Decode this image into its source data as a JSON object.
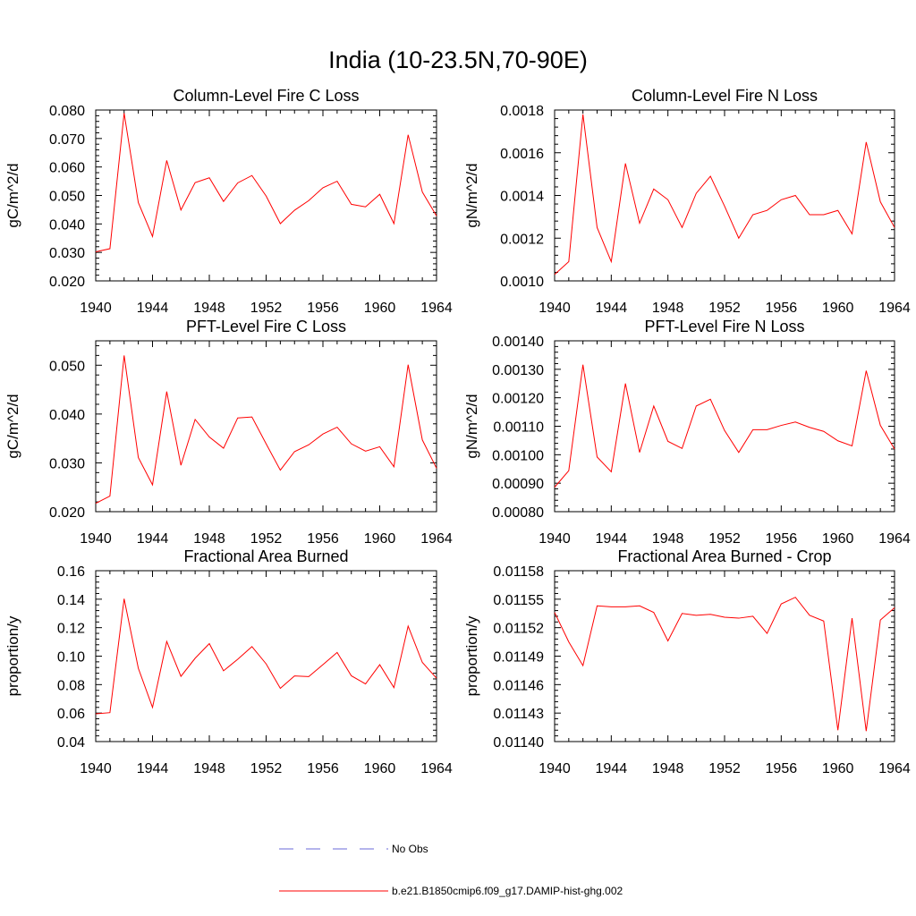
{
  "figure_title": "India (10-23.5N,70-90E)",
  "x_ticks": [
    "1940",
    "1944",
    "1948",
    "1952",
    "1956",
    "1960",
    "1964"
  ],
  "chart_data": [
    {
      "type": "line",
      "title": "Column-Level Fire C Loss",
      "xlabel": "",
      "ylabel": "gC/m^2/d",
      "xlim": [
        1940,
        1964
      ],
      "ylim": [
        0.02,
        0.08
      ],
      "y_ticks": [
        "0.020",
        "0.030",
        "0.040",
        "0.050",
        "0.060",
        "0.070",
        "0.080"
      ],
      "x": [
        1940,
        1941,
        1942,
        1943,
        1944,
        1945,
        1946,
        1947,
        1948,
        1949,
        1950,
        1951,
        1952,
        1953,
        1954,
        1955,
        1956,
        1957,
        1958,
        1959,
        1960,
        1961,
        1962,
        1963,
        1964
      ],
      "series": [
        {
          "name": "b.e21.B1850cmip6.f09_g17.DAMIP-hist-ghg.002",
          "color": "#ff0000",
          "values": [
            0.0302,
            0.0313,
            0.0789,
            0.0475,
            0.0356,
            0.0623,
            0.0449,
            0.0545,
            0.0562,
            0.0479,
            0.0544,
            0.057,
            0.0498,
            0.0401,
            0.0448,
            0.0482,
            0.0527,
            0.055,
            0.0469,
            0.046,
            0.0504,
            0.0401,
            0.0713,
            0.0512,
            0.0428
          ]
        }
      ]
    },
    {
      "type": "line",
      "title": "Column-Level Fire N Loss",
      "xlabel": "",
      "ylabel": "gN/m^2/d",
      "xlim": [
        1940,
        1964
      ],
      "ylim": [
        0.001,
        0.0018
      ],
      "y_ticks": [
        "0.0010",
        "0.0012",
        "0.0014",
        "0.0016",
        "0.0018"
      ],
      "x": [
        1940,
        1941,
        1942,
        1943,
        1944,
        1945,
        1946,
        1947,
        1948,
        1949,
        1950,
        1951,
        1952,
        1953,
        1954,
        1955,
        1956,
        1957,
        1958,
        1959,
        1960,
        1961,
        1962,
        1963,
        1964
      ],
      "series": [
        {
          "name": "b.e21.B1850cmip6.f09_g17.DAMIP-hist-ghg.002",
          "color": "#ff0000",
          "values": [
            0.00103,
            0.00109,
            0.00178,
            0.00125,
            0.00109,
            0.00155,
            0.00127,
            0.00143,
            0.00138,
            0.00125,
            0.00141,
            0.00149,
            0.00135,
            0.0012,
            0.00131,
            0.00133,
            0.00138,
            0.0014,
            0.00131,
            0.00131,
            0.00133,
            0.00122,
            0.00165,
            0.00137,
            0.00125
          ]
        }
      ]
    },
    {
      "type": "line",
      "title": "PFT-Level Fire C Loss",
      "xlabel": "",
      "ylabel": "gC/m^2/d",
      "xlim": [
        1940,
        1964
      ],
      "ylim": [
        0.02,
        0.055
      ],
      "y_ticks": [
        "0.020",
        "0.030",
        "0.040",
        "0.050"
      ],
      "y_tick_values": [
        0.02,
        0.03,
        0.04,
        0.05
      ],
      "x": [
        1940,
        1941,
        1942,
        1943,
        1944,
        1945,
        1946,
        1947,
        1948,
        1949,
        1950,
        1951,
        1952,
        1953,
        1954,
        1955,
        1956,
        1957,
        1958,
        1959,
        1960,
        1961,
        1962,
        1963,
        1964
      ],
      "series": [
        {
          "name": "b.e21.B1850cmip6.f09_g17.DAMIP-hist-ghg.002",
          "color": "#ff0000",
          "values": [
            0.0217,
            0.0232,
            0.052,
            0.0311,
            0.0255,
            0.0446,
            0.0295,
            0.0389,
            0.0353,
            0.033,
            0.0392,
            0.0394,
            0.0339,
            0.0285,
            0.0323,
            0.0337,
            0.0359,
            0.0373,
            0.0339,
            0.0324,
            0.0333,
            0.0292,
            0.0501,
            0.0347,
            0.0289
          ]
        }
      ]
    },
    {
      "type": "line",
      "title": "PFT-Level Fire N Loss",
      "xlabel": "",
      "ylabel": "gN/m^2/d",
      "xlim": [
        1940,
        1964
      ],
      "ylim": [
        0.0008,
        0.0014
      ],
      "y_ticks": [
        "0.00080",
        "0.00090",
        "0.00100",
        "0.00110",
        "0.00120",
        "0.00130",
        "0.00140"
      ],
      "x": [
        1940,
        1941,
        1942,
        1943,
        1944,
        1945,
        1946,
        1947,
        1948,
        1949,
        1950,
        1951,
        1952,
        1953,
        1954,
        1955,
        1956,
        1957,
        1958,
        1959,
        1960,
        1961,
        1962,
        1963,
        1964
      ],
      "series": [
        {
          "name": "b.e21.B1850cmip6.f09_g17.DAMIP-hist-ghg.002",
          "color": "#ff0000",
          "values": [
            0.000886,
            0.000944,
            0.001316,
            0.000992,
            0.00094,
            0.00125,
            0.001008,
            0.001171,
            0.001047,
            0.001022,
            0.001171,
            0.001195,
            0.001085,
            0.001008,
            0.001088,
            0.001088,
            0.001103,
            0.001115,
            0.001096,
            0.001082,
            0.001049,
            0.001031,
            0.001295,
            0.001103,
            0.00102
          ]
        }
      ]
    },
    {
      "type": "line",
      "title": "Fractional Area Burned",
      "xlabel": "",
      "ylabel": "proportion/y",
      "xlim": [
        1940,
        1964
      ],
      "ylim": [
        0.04,
        0.16
      ],
      "y_ticks": [
        "0.04",
        "0.06",
        "0.08",
        "0.10",
        "0.12",
        "0.14",
        "0.16"
      ],
      "x": [
        1940,
        1941,
        1942,
        1943,
        1944,
        1945,
        1946,
        1947,
        1948,
        1949,
        1950,
        1951,
        1952,
        1953,
        1954,
        1955,
        1956,
        1957,
        1958,
        1959,
        1960,
        1961,
        1962,
        1963,
        1964
      ],
      "series": [
        {
          "name": "b.e21.B1850cmip6.f09_g17.DAMIP-hist-ghg.002",
          "color": "#ff0000",
          "values": [
            0.0595,
            0.0603,
            0.1403,
            0.0915,
            0.064,
            0.1103,
            0.0858,
            0.0985,
            0.1088,
            0.0897,
            0.0978,
            0.1067,
            0.0946,
            0.0774,
            0.0861,
            0.0856,
            0.094,
            0.1026,
            0.0862,
            0.0805,
            0.094,
            0.0779,
            0.1211,
            0.0956,
            0.0845
          ]
        }
      ]
    },
    {
      "type": "line",
      "title": "Fractional Area Burned - Crop",
      "xlabel": "",
      "ylabel": "proportion/y",
      "xlim": [
        1940,
        1964
      ],
      "ylim": [
        0.0114,
        0.01158
      ],
      "y_ticks": [
        "0.01140",
        "0.01143",
        "0.01146",
        "0.01149",
        "0.01152",
        "0.01155",
        "0.01158"
      ],
      "x": [
        1940,
        1941,
        1942,
        1943,
        1944,
        1945,
        1946,
        1947,
        1948,
        1949,
        1950,
        1951,
        1952,
        1953,
        1954,
        1955,
        1956,
        1957,
        1958,
        1959,
        1960,
        1961,
        1962,
        1963,
        1964
      ],
      "series": [
        {
          "name": "b.e21.B1850cmip6.f09_g17.DAMIP-hist-ghg.002",
          "color": "#ff0000",
          "values": [
            0.011536,
            0.011505,
            0.01148,
            0.011543,
            0.011542,
            0.011542,
            0.011543,
            0.011536,
            0.011506,
            0.011535,
            0.011533,
            0.011534,
            0.011531,
            0.01153,
            0.011532,
            0.011514,
            0.011545,
            0.011552,
            0.011533,
            0.011527,
            0.011412,
            0.01153,
            0.011411,
            0.011528,
            0.011541
          ]
        }
      ]
    }
  ],
  "legend": [
    {
      "label": "No Obs",
      "color": "#6a6ad8",
      "style": "dashed"
    },
    {
      "label": "b.e21.B1850cmip6.f09_g17.DAMIP-hist-ghg.002",
      "color": "#ff0000",
      "style": "solid"
    }
  ]
}
